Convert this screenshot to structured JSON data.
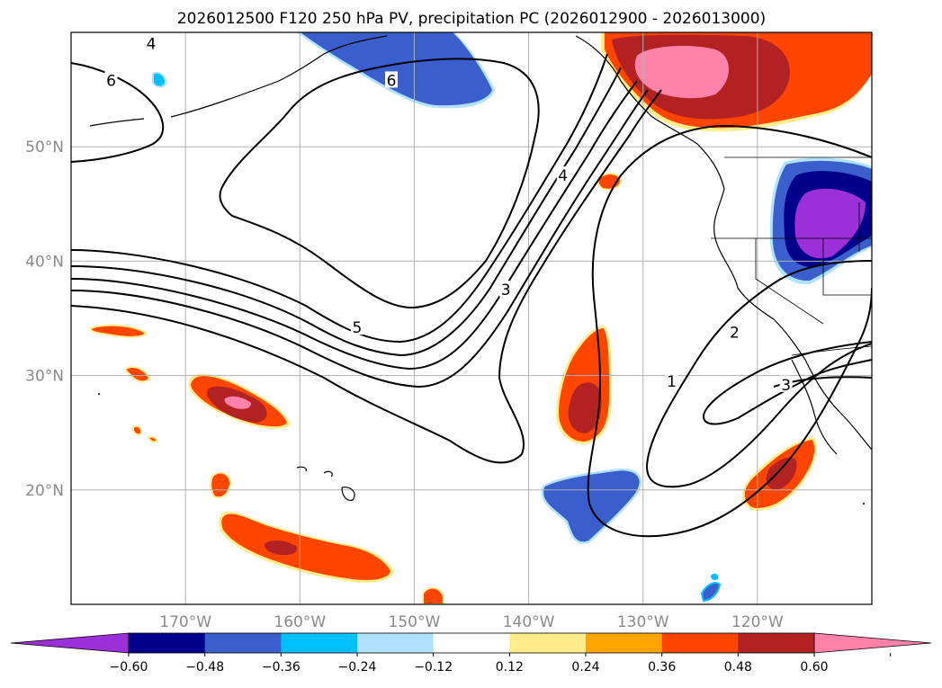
{
  "chart_data": {
    "type": "heatmap",
    "title": "2026012500 F120 250 hPa PV, precipitation PC (2026012900 - 2026013000)",
    "x_ticks": [
      {
        "lon": -170,
        "label": "170°W"
      },
      {
        "lon": -160,
        "label": "160°W"
      },
      {
        "lon": -150,
        "label": "150°W"
      },
      {
        "lon": -140,
        "label": "140°W"
      },
      {
        "lon": -130,
        "label": "130°W"
      },
      {
        "lon": -120,
        "label": "120°W"
      }
    ],
    "y_ticks": [
      {
        "lat": 50,
        "label": "50°N"
      },
      {
        "lat": 40,
        "label": "40°N"
      },
      {
        "lat": 30,
        "label": "30°N"
      },
      {
        "lat": 20,
        "label": "20°N"
      }
    ],
    "lon_range": [
      -180,
      -110
    ],
    "lat_range": [
      10,
      60
    ],
    "grid": true,
    "colorbar": {
      "levels": [
        -0.72,
        -0.6,
        -0.48,
        -0.36,
        -0.24,
        -0.12,
        0.12,
        0.24,
        0.36,
        0.48,
        0.6,
        0.72
      ],
      "colors": [
        "#9b30d9",
        "#00008b",
        "#3a5fcd",
        "#00bfff",
        "#b0e2ff",
        "#ffffff",
        "#ffec8b",
        "#ffa500",
        "#ff4500",
        "#b22222",
        "#ff82ab"
      ],
      "tick_labels": [
        "−0.60",
        "−0.48",
        "−0.36",
        "−0.24",
        "−0.12",
        "0.12",
        "0.24",
        "0.36",
        "0.48",
        "0.60"
      ],
      "extend": "both"
    },
    "contour_labels": [
      {
        "text": "1",
        "lon": -127.5,
        "lat": 29.5
      },
      {
        "text": "2",
        "lon": -122,
        "lat": 33.8
      },
      {
        "text": "3",
        "lon": -142,
        "lat": 37.5
      },
      {
        "text": "3",
        "lon": -117.5,
        "lat": 29.2
      },
      {
        "text": "4",
        "lon": -137,
        "lat": 47.5
      },
      {
        "text": "4",
        "lon": -173,
        "lat": 59
      },
      {
        "text": "5",
        "lon": -155,
        "lat": 34.2
      },
      {
        "text": "6",
        "lon": -152,
        "lat": 55.8
      },
      {
        "text": "6",
        "lon": -176.5,
        "lat": 55.8
      }
    ],
    "precip_regions": [
      {
        "name": "gulf-of-alaska-positive",
        "max_level": 0.6,
        "lon": -126,
        "lat": 56
      },
      {
        "name": "west-us-negative",
        "min_level": -0.6,
        "lon": -116,
        "lat": 43
      },
      {
        "name": "alaska-negative",
        "min_level": -0.36,
        "lon": -152,
        "lat": 57
      },
      {
        "name": "subtropic-positive-165w",
        "max_level": 0.6,
        "lon": -165,
        "lat": 28
      },
      {
        "name": "subtropic-positive-135w",
        "max_level": 0.48,
        "lon": -135,
        "lat": 27
      },
      {
        "name": "baja-positive",
        "max_level": 0.48,
        "lon": -118,
        "lat": 21
      },
      {
        "name": "hawaii-south-positive",
        "max_level": 0.48,
        "lon": -159,
        "lat": 14.5
      },
      {
        "name": "subtropic-negative-133w",
        "min_level": -0.36,
        "lon": -133,
        "lat": 19
      }
    ]
  }
}
